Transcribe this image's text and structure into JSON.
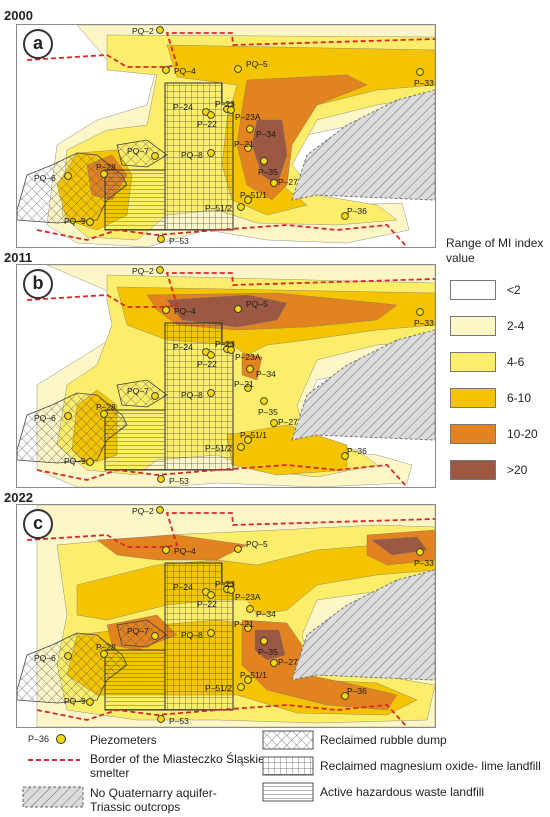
{
  "panels": [
    {
      "year": "2000",
      "letter": "a",
      "piezometers": [
        {
          "id": "PQ-2",
          "label": "PQ–2"
        },
        {
          "id": "PQ-4",
          "label": "PQ–4"
        },
        {
          "id": "PQ-5",
          "label": "PQ–5"
        },
        {
          "id": "P-33",
          "label": "P–33"
        },
        {
          "id": "P-24",
          "label": "P–24"
        },
        {
          "id": "P-23",
          "label": "P–23"
        },
        {
          "id": "P-22",
          "label": "P–22"
        },
        {
          "id": "P-23A",
          "label": "P–23A"
        },
        {
          "id": "P-34",
          "label": "P–34"
        },
        {
          "id": "P-21",
          "label": "P–21"
        },
        {
          "id": "PQ-8",
          "label": "PQ–8"
        },
        {
          "id": "P-35",
          "label": "P–35"
        },
        {
          "id": "P-27",
          "label": "P–27"
        },
        {
          "id": "PQ-7",
          "label": "PQ–7"
        },
        {
          "id": "P-28",
          "label": "P–28"
        },
        {
          "id": "PQ-6",
          "label": "PQ–6"
        },
        {
          "id": "PQ-9",
          "label": "PQ–9"
        },
        {
          "id": "P-51/1",
          "label": "P–51/1"
        },
        {
          "id": "P-51/2",
          "label": "P–51/2"
        },
        {
          "id": "P-36",
          "label": "P–36"
        },
        {
          "id": "P-53",
          "label": "P–53"
        }
      ]
    },
    {
      "year": "2011",
      "letter": "b",
      "piezometers": [
        {
          "id": "PQ-2",
          "label": "PQ–2"
        },
        {
          "id": "PQ-4",
          "label": "PQ–4"
        },
        {
          "id": "PQ-5",
          "label": "PQ–5"
        },
        {
          "id": "P-33",
          "label": "P–33"
        },
        {
          "id": "P-24",
          "label": "P–24"
        },
        {
          "id": "P-23",
          "label": "P–23"
        },
        {
          "id": "P-22",
          "label": "P–22"
        },
        {
          "id": "P-23A",
          "label": "P–23A"
        },
        {
          "id": "P-34",
          "label": "P–34"
        },
        {
          "id": "P-21",
          "label": "P–21"
        },
        {
          "id": "PQ-8",
          "label": "PQ–8"
        },
        {
          "id": "P-35",
          "label": "P–35"
        },
        {
          "id": "P-27",
          "label": "P–27"
        },
        {
          "id": "PQ-7",
          "label": "PQ–7"
        },
        {
          "id": "P-28",
          "label": "P–28"
        },
        {
          "id": "PQ-6",
          "label": "PQ–6"
        },
        {
          "id": "PQ-9",
          "label": "PQ–9"
        },
        {
          "id": "P-51/1",
          "label": "P–51/1"
        },
        {
          "id": "P-51/2",
          "label": "P–51/2"
        },
        {
          "id": "P-36",
          "label": "P–36"
        },
        {
          "id": "P-53",
          "label": "P–53"
        }
      ]
    },
    {
      "year": "2022",
      "letter": "c",
      "piezometers": [
        {
          "id": "PQ-2",
          "label": "PQ–2"
        },
        {
          "id": "PQ-4",
          "label": "PQ–4"
        },
        {
          "id": "PQ-5",
          "label": "PQ–5"
        },
        {
          "id": "P-33",
          "label": "P–33"
        },
        {
          "id": "P-24",
          "label": "P–24"
        },
        {
          "id": "P-23",
          "label": "P–23"
        },
        {
          "id": "P-22",
          "label": "P–22"
        },
        {
          "id": "P-23A",
          "label": "P–23A"
        },
        {
          "id": "P-34",
          "label": "P–34"
        },
        {
          "id": "P-21",
          "label": "P–21"
        },
        {
          "id": "PQ-8",
          "label": "PQ–8"
        },
        {
          "id": "P-35",
          "label": "P–35"
        },
        {
          "id": "P-27",
          "label": "P–27"
        },
        {
          "id": "PQ-7",
          "label": "PQ–7"
        },
        {
          "id": "P-28",
          "label": "P–28"
        },
        {
          "id": "PQ-6",
          "label": "PQ–6"
        },
        {
          "id": "PQ-9",
          "label": "PQ–9"
        },
        {
          "id": "P-51/1",
          "label": "P–51/1"
        },
        {
          "id": "P-51/2",
          "label": "P–51/2"
        },
        {
          "id": "P-36",
          "label": "P–36"
        },
        {
          "id": "P-53",
          "label": "P–53"
        }
      ]
    }
  ],
  "range_legend": {
    "title": "Range of MI index value",
    "classes": [
      {
        "label": "<2",
        "color": "#ffffff"
      },
      {
        "label": "2-4",
        "color": "#fdf7c8"
      },
      {
        "label": "4-6",
        "color": "#fcee6a"
      },
      {
        "label": "6-10",
        "color": "#f5c400"
      },
      {
        "label": "10-20",
        "color": "#e3831f"
      },
      {
        "label": ">20",
        "color": "#9b5842"
      }
    ]
  },
  "legend": {
    "piezometer_example": "P–36",
    "piezometers": "Piezometers",
    "border_line1": "Border of the Miasteczko Śląskie",
    "border_line2": "smelter",
    "no_aquifer_line1": "No Quaternarry aquifer-",
    "no_aquifer_line2": "Triassic outcrops",
    "rubble_dump": "Reclaimed rubble dump",
    "mgo_landfill": "Reclaimed magnesium oxide- lime landfill",
    "hazardous_landfill": "Active hazardous waste landfill"
  },
  "colors": {
    "border": "#d42a2a",
    "piezometer_fill": "#f5d90c",
    "outcrop": "#d9d9d9"
  }
}
